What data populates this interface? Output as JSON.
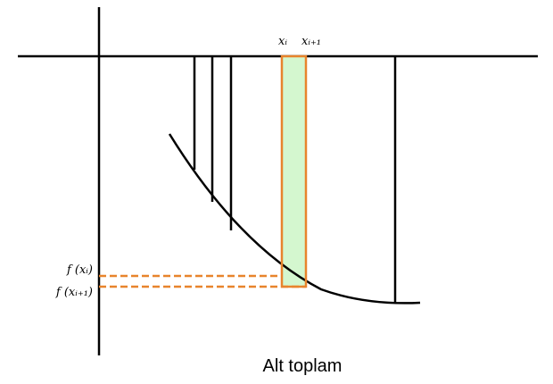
{
  "diagram": {
    "caption": "Alt toplam",
    "labels": {
      "x_i": "xᵢ",
      "x_i_plus_1": "xᵢ₊₁",
      "f_x_i": "f (xᵢ)",
      "f_x_i_plus_1": "f (xᵢ₊₁)"
    },
    "colors": {
      "axes": "#000000",
      "curve": "#000000",
      "highlight_fill": "#d4f7cf",
      "highlight_stroke": "#e8842c",
      "dashed_lines": "#e8842c"
    }
  }
}
